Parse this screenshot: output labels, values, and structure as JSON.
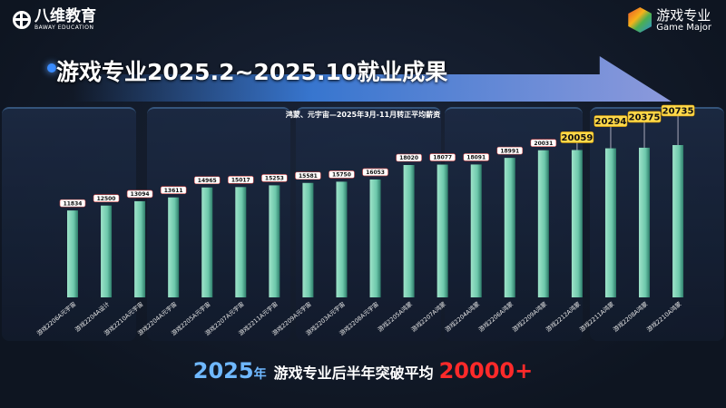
{
  "header": {
    "logo_cn": "八维教育",
    "logo_en": "BAWAY EDUCATION",
    "major_cn": "游戏专业",
    "major_en": "Game Major"
  },
  "title": "游戏专业2025.2~2025.10就业成果",
  "footer": {
    "year": "2025",
    "year_suffix": "年",
    "text": "游戏专业后半年突破平均",
    "value": "20000+"
  },
  "colors": {
    "bar": "#6ec9ac",
    "highlight_label": "#ffd94a",
    "normal_label": "#ffffff",
    "accent_red": "#ff2a2a"
  },
  "chart_data": {
    "type": "bar",
    "title": "鸿蒙、元宇宙—2025年3月-11月转正平均薪资",
    "xlabel": "",
    "ylabel": "",
    "ylim": [
      0,
      21000
    ],
    "grid": false,
    "categories": [
      "游戏2206A元宇宙",
      "游戏2204A设计",
      "游戏2210A元宇宙",
      "游戏2204A元宇宙",
      "游戏2205A元宇宙",
      "游戏2207A元宇宙",
      "游戏2211A元宇宙",
      "游戏2209A元宇宙",
      "游戏2203A元宇宙",
      "游戏2208A元宇宙",
      "游戏2205A鸿蒙",
      "游戏2207A鸿蒙",
      "游戏2204A鸿蒙",
      "游戏2206A鸿蒙",
      "游戏2209A鸿蒙",
      "游戏2212A鸿蒙",
      "游戏2211A鸿蒙",
      "游戏2208A鸿蒙",
      "游戏2210A鸿蒙"
    ],
    "values": [
      11834,
      12500,
      13094,
      13611,
      14965,
      15017,
      15253,
      15581,
      15750,
      16053,
      18020,
      18077,
      18091,
      18991,
      20031,
      20059,
      20294,
      20375,
      20735
    ],
    "highlighted": [
      15,
      16,
      17,
      18
    ]
  }
}
